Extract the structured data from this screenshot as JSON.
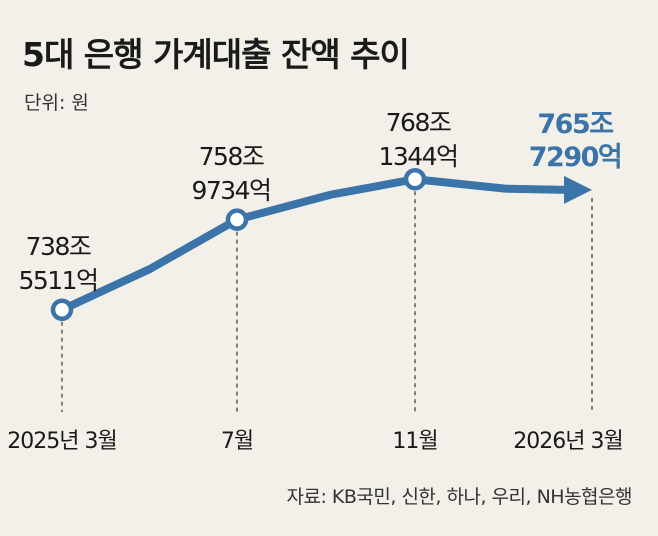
{
  "title": "5대 은행 가계대출 잔액 추이",
  "unit": "단위: 원",
  "source": "자료: KB국민, 신한, 하나, 우리, NH농협은행",
  "colors": {
    "line": "#3b74a9",
    "text": "#1a1a1a",
    "background": "#f3f0ea"
  },
  "chart_data": {
    "type": "line",
    "title": "5대 은행 가계대출 잔액 추이",
    "xlabel": "",
    "ylabel": "",
    "categories": [
      "2025년 3월",
      "7월",
      "11월",
      "2026년 3월"
    ],
    "series": [
      {
        "name": "가계대출 잔액",
        "values": [
          738.5511,
          758.9734,
          768.1344,
          765.729
        ]
      }
    ],
    "value_labels": [
      [
        "738조",
        "5511억"
      ],
      [
        "758조",
        "9734억"
      ],
      [
        "768조",
        "1344억"
      ],
      [
        "765조",
        "7290억"
      ]
    ],
    "ylim": [
      736,
      770
    ],
    "grid": false,
    "legend": "none"
  }
}
